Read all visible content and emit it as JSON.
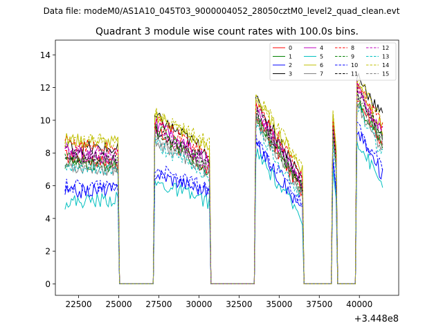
{
  "figure": {
    "suptitle": "Data file: modeM0/AS1A10_045T03_9000004052_28050cztM0_level2_quad_clean.evt",
    "title": "Quadrant 3 module wise count rates with 100.0s bins."
  },
  "chart_data": {
    "type": "line",
    "title": "Quadrant 3 module wise count rates with 100.0s bins.",
    "xlabel": "",
    "ylabel": "",
    "x_offset_label": "+3.448e8",
    "xlim": [
      21050,
      42450
    ],
    "ylim": [
      -0.7,
      14.9
    ],
    "xticks": [
      22500,
      25000,
      27500,
      30000,
      32500,
      35000,
      37500,
      40000
    ],
    "xtick_labels": [
      "22500",
      "25000",
      "27500",
      "30000",
      "32500",
      "35000",
      "37500",
      "40000"
    ],
    "yticks": [
      0,
      2,
      4,
      6,
      8,
      10,
      12,
      14
    ],
    "ytick_labels": [
      "0",
      "2",
      "4",
      "6",
      "8",
      "10",
      "12",
      "14"
    ],
    "grid": false,
    "legend": {
      "position": "top-right",
      "columns": 4
    },
    "x_start": 21650,
    "x_step": 100,
    "gaps": [
      {
        "from": 25000,
        "to": 27200
      },
      {
        "from": 30700,
        "to": 33500
      },
      {
        "from": 36500,
        "to": 38300
      },
      {
        "from": 38600,
        "to": 39800
      }
    ],
    "segments": [
      {
        "from": 21650,
        "to": 24950,
        "shape": "flat"
      },
      {
        "from": 27250,
        "to": 30650,
        "shape": "decay"
      },
      {
        "from": 33550,
        "to": 36450,
        "shape": "decay"
      },
      {
        "from": 38350,
        "to": 38550,
        "shape": "spike"
      },
      {
        "from": 39850,
        "to": 41450,
        "shape": "decay"
      }
    ],
    "series": [
      {
        "name": "0",
        "color": "#ff0000",
        "dash": false,
        "segment_levels": [
          [
            7.8,
            7.4
          ],
          [
            9.4,
            6.8
          ],
          [
            10.2,
            5.6
          ],
          [
            9.2,
            7.0
          ],
          [
            11.6,
            8.6
          ]
        ]
      },
      {
        "name": "1",
        "color": "#008000",
        "dash": false,
        "segment_levels": [
          [
            7.4,
            7.2
          ],
          [
            9.6,
            6.8
          ],
          [
            10.4,
            5.8
          ],
          [
            9.4,
            7.2
          ],
          [
            11.2,
            8.6
          ]
        ]
      },
      {
        "name": "2",
        "color": "#0000ff",
        "dash": false,
        "segment_levels": [
          [
            5.6,
            5.8
          ],
          [
            6.8,
            5.6
          ],
          [
            8.6,
            4.4
          ],
          [
            7.6,
            5.6
          ],
          [
            9.4,
            6.6
          ]
        ]
      },
      {
        "name": "3",
        "color": "#000000",
        "dash": false,
        "segment_levels": [
          [
            8.4,
            8.2
          ],
          [
            10.2,
            8.0
          ],
          [
            11.2,
            6.4
          ],
          [
            10.4,
            8.2
          ],
          [
            12.8,
            10.2
          ]
        ]
      },
      {
        "name": "4",
        "color": "#bf00bf",
        "dash": false,
        "segment_levels": [
          [
            8.0,
            7.6
          ],
          [
            9.8,
            7.4
          ],
          [
            10.8,
            6.0
          ],
          [
            9.8,
            7.6
          ],
          [
            12.0,
            9.0
          ]
        ]
      },
      {
        "name": "5",
        "color": "#00bfbf",
        "dash": false,
        "segment_levels": [
          [
            5.0,
            5.2
          ],
          [
            6.2,
            5.0
          ],
          [
            8.0,
            4.0
          ],
          [
            7.0,
            5.2
          ],
          [
            8.8,
            6.0
          ]
        ]
      },
      {
        "name": "6",
        "color": "#bfbf00",
        "dash": false,
        "segment_levels": [
          [
            8.8,
            8.6
          ],
          [
            10.4,
            8.2
          ],
          [
            11.4,
            7.0
          ],
          [
            10.4,
            8.2
          ],
          [
            12.4,
            9.4
          ]
        ]
      },
      {
        "name": "7",
        "color": "#808080",
        "dash": false,
        "segment_levels": [
          [
            7.2,
            7.0
          ],
          [
            8.8,
            6.8
          ],
          [
            10.0,
            5.4
          ],
          [
            9.0,
            7.0
          ],
          [
            11.0,
            8.2
          ]
        ]
      },
      {
        "name": "8",
        "color": "#ff0000",
        "dash": true,
        "segment_levels": [
          [
            8.6,
            8.2
          ],
          [
            10.0,
            7.8
          ],
          [
            11.0,
            6.6
          ],
          [
            10.0,
            7.8
          ],
          [
            12.2,
            9.6
          ]
        ]
      },
      {
        "name": "9",
        "color": "#008000",
        "dash": true,
        "segment_levels": [
          [
            7.6,
            7.4
          ],
          [
            9.2,
            7.2
          ],
          [
            10.2,
            5.8
          ],
          [
            9.2,
            7.2
          ],
          [
            11.4,
            8.8
          ]
        ]
      },
      {
        "name": "10",
        "color": "#0000ff",
        "dash": true,
        "segment_levels": [
          [
            6.0,
            6.0
          ],
          [
            7.0,
            5.8
          ],
          [
            8.8,
            4.8
          ],
          [
            7.8,
            5.8
          ],
          [
            9.6,
            7.0
          ]
        ]
      },
      {
        "name": "11",
        "color": "#000000",
        "dash": true,
        "segment_levels": [
          [
            7.8,
            7.6
          ],
          [
            9.4,
            7.4
          ],
          [
            10.6,
            6.0
          ],
          [
            9.6,
            7.6
          ],
          [
            11.8,
            9.0
          ]
        ]
      },
      {
        "name": "12",
        "color": "#bf00bf",
        "dash": true,
        "segment_levels": [
          [
            8.2,
            7.8
          ],
          [
            9.6,
            7.2
          ],
          [
            10.6,
            6.2
          ],
          [
            9.6,
            7.4
          ],
          [
            12.0,
            9.2
          ]
        ]
      },
      {
        "name": "13",
        "color": "#00bfbf",
        "dash": true,
        "segment_levels": [
          [
            7.0,
            7.0
          ],
          [
            8.6,
            6.6
          ],
          [
            9.6,
            5.2
          ],
          [
            8.6,
            6.8
          ],
          [
            10.8,
            8.0
          ]
        ]
      },
      {
        "name": "14",
        "color": "#bfbf00",
        "dash": true,
        "segment_levels": [
          [
            8.8,
            8.8
          ],
          [
            10.4,
            8.6
          ],
          [
            11.6,
            7.2
          ],
          [
            10.6,
            8.4
          ],
          [
            12.6,
            9.8
          ]
        ]
      },
      {
        "name": "15",
        "color": "#808080",
        "dash": true,
        "segment_levels": [
          [
            7.4,
            7.2
          ],
          [
            9.0,
            7.0
          ],
          [
            10.2,
            5.6
          ],
          [
            9.2,
            7.2
          ],
          [
            11.4,
            8.6
          ]
        ]
      }
    ]
  }
}
